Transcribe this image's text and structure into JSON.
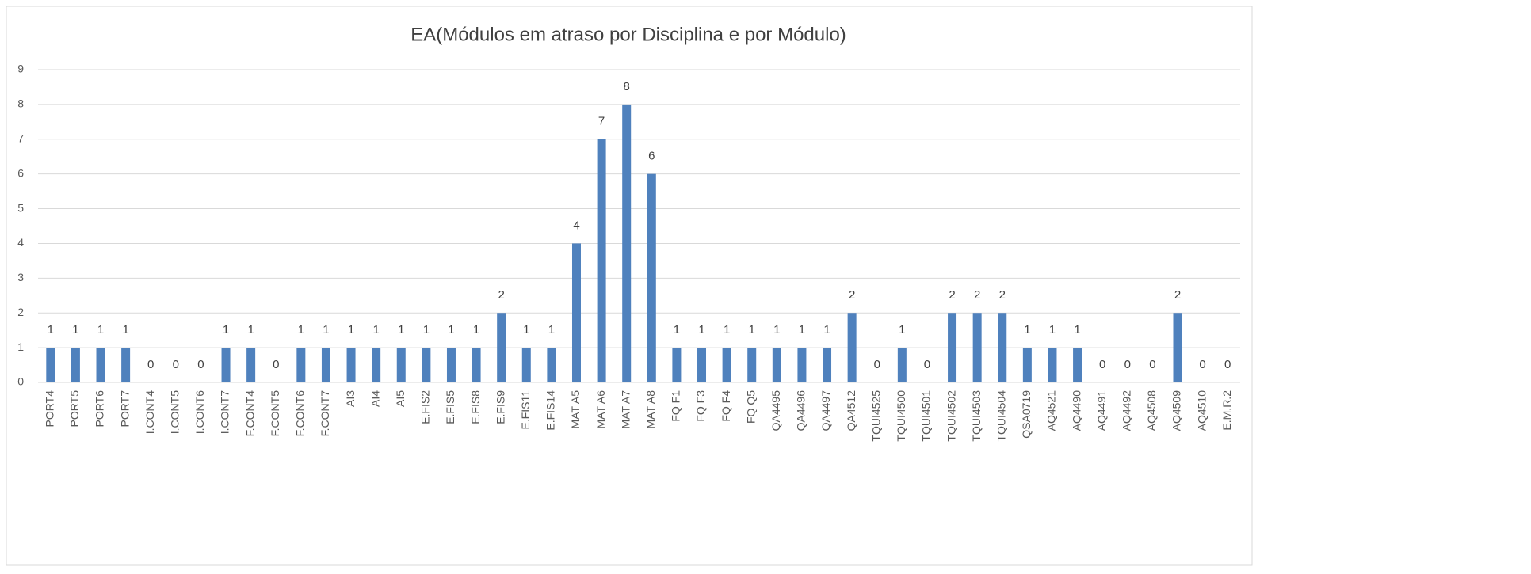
{
  "chart_data": {
    "type": "bar",
    "title": "EA(Módulos em atraso por Disciplina e por Módulo)",
    "categories": [
      "PORT4",
      "PORT5",
      "PORT6",
      "PORT7",
      "I.CONT4",
      "I.CONT5",
      "I.CONT6",
      "I.CONT7",
      "F.CONT4",
      "F.CONT5",
      "F.CONT6",
      "F.CONT7",
      "AI3",
      "AI4",
      "AI5",
      "E.FIS2",
      "E.FIS5",
      "E.FIS8",
      "E.FIS9",
      "E.FIS11",
      "E.FIS14",
      "MAT A5",
      "MAT A6",
      "MAT A7",
      "MAT A8",
      "FQ F1",
      "FQ F3",
      "FQ F4",
      "FQ Q5",
      "QA4495",
      "QA4496",
      "QA4497",
      "QA4512",
      "TQUI4525",
      "TQUI4500",
      "TQUI4501",
      "TQUI4502",
      "TQUI4503",
      "TQUI4504",
      "QSA0719",
      "AQ4521",
      "AQ4490",
      "AQ4491",
      "AQ4492",
      "AQ4508",
      "AQ4509",
      "AQ4510",
      "E.M.R.2"
    ],
    "values": [
      1,
      1,
      1,
      1,
      0,
      0,
      0,
      1,
      1,
      0,
      1,
      1,
      1,
      1,
      1,
      1,
      1,
      1,
      2,
      1,
      1,
      4,
      7,
      8,
      6,
      1,
      1,
      1,
      1,
      1,
      1,
      1,
      2,
      0,
      1,
      0,
      2,
      2,
      2,
      1,
      1,
      1,
      0,
      0,
      0,
      2,
      0,
      0
    ],
    "color": "#4f81bd",
    "ylim": [
      0,
      9
    ],
    "yticks": [
      0,
      1,
      2,
      3,
      4,
      5,
      6,
      7,
      8,
      9
    ],
    "grid": true,
    "data_labels": true
  }
}
